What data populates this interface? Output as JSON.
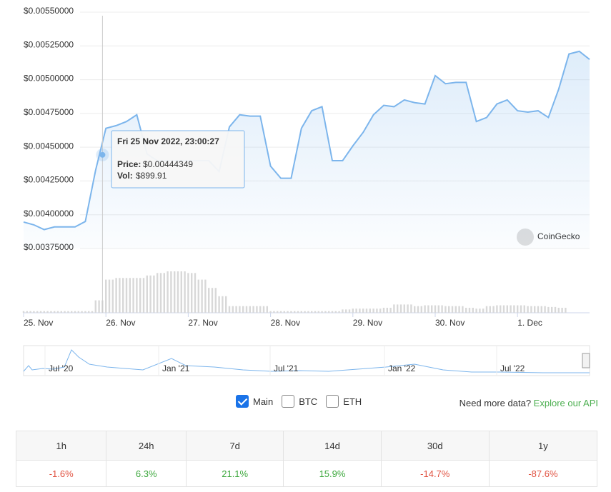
{
  "chart_data": {
    "type": "line",
    "series": [
      {
        "name": "Price",
        "color": "#7cb5ec",
        "x": [
          0,
          3,
          6,
          9,
          12,
          15,
          18,
          21,
          24,
          27,
          30,
          33,
          36,
          39,
          42,
          45,
          48,
          51,
          54,
          57,
          60,
          63,
          66,
          69,
          72,
          75,
          78,
          81,
          84,
          87,
          90,
          93,
          96,
          99,
          102,
          105,
          108,
          111,
          114,
          117,
          120,
          123,
          126,
          129,
          132,
          135,
          138,
          141,
          144,
          147,
          150,
          153,
          156,
          159,
          162,
          165
        ],
        "values": [
          0.003946,
          0.003925,
          0.00389,
          0.00391,
          0.00391,
          0.00391,
          0.00395,
          0.00433,
          0.00464,
          0.00466,
          0.00469,
          0.00474,
          0.00445,
          0.0044,
          0.0044,
          0.0044,
          0.0044,
          0.0044,
          0.0044,
          0.00432,
          0.00465,
          0.00474,
          0.00473,
          0.00473,
          0.00436,
          0.00427,
          0.00427,
          0.00464,
          0.00477,
          0.0048,
          0.0044,
          0.0044,
          0.00451,
          0.00461,
          0.00474,
          0.00481,
          0.0048,
          0.00485,
          0.00483,
          0.00482,
          0.00503,
          0.00497,
          0.00498,
          0.00498,
          0.00469,
          0.00472,
          0.00482,
          0.00485,
          0.00477,
          0.00476,
          0.00477,
          0.00472,
          0.00493,
          0.00519,
          0.00521,
          0.00515
        ]
      },
      {
        "name": "Vol",
        "color": "#d8d8d8",
        "axis": "y2",
        "x": [
          0,
          3,
          6,
          9,
          12,
          15,
          18,
          21,
          24,
          27,
          30,
          33,
          36,
          39,
          42,
          45,
          48,
          51,
          54,
          57,
          60,
          63,
          66,
          69,
          72,
          75,
          78,
          81,
          84,
          87,
          90,
          93,
          96,
          99,
          102,
          105,
          108,
          111,
          114,
          117,
          120,
          123,
          126,
          129,
          132,
          135,
          138,
          141,
          144,
          147,
          150,
          153,
          156
        ],
        "values": [
          2,
          2,
          2,
          2,
          2,
          2,
          2,
          15,
          40,
          42,
          42,
          42,
          45,
          48,
          50,
          50,
          48,
          40,
          30,
          20,
          8,
          8,
          8,
          8,
          2,
          2,
          2,
          2,
          2,
          2,
          2,
          4,
          5,
          5,
          5,
          6,
          10,
          10,
          8,
          9,
          9,
          8,
          8,
          6,
          5,
          8,
          9,
          9,
          9,
          8,
          8,
          7,
          6
        ]
      }
    ],
    "xlim": [
      0,
      165
    ],
    "xticks": [
      {
        "value": 0,
        "label": "25. Nov"
      },
      {
        "value": 24,
        "label": "26. Nov"
      },
      {
        "value": 48,
        "label": "27. Nov"
      },
      {
        "value": 72,
        "label": "28. Nov"
      },
      {
        "value": 96,
        "label": "29. Nov"
      },
      {
        "value": 120,
        "label": "30. Nov"
      },
      {
        "value": 144,
        "label": "1. Dec"
      }
    ],
    "ylim": [
      0.00375,
      0.0055
    ],
    "yticks": [
      {
        "value": 0.0055,
        "label": "$0.00550000"
      },
      {
        "value": 0.00525,
        "label": "$0.00525000"
      },
      {
        "value": 0.005,
        "label": "$0.00500000"
      },
      {
        "value": 0.00475,
        "label": "$0.00475000"
      },
      {
        "value": 0.0045,
        "label": "$0.00450000"
      },
      {
        "value": 0.00425,
        "label": "$0.00425000"
      },
      {
        "value": 0.004,
        "label": "$0.00400000"
      },
      {
        "value": 0.00375,
        "label": "$0.00375000"
      }
    ],
    "y2lim": [
      0,
      50
    ],
    "grid": true,
    "tooltip": {
      "title": "Fri 25 Nov 2022, 23:00:27",
      "x": 23,
      "price_label": "Price:",
      "price": "$0.00444349",
      "price_value": 0.00444349,
      "vol_label": "Vol:",
      "vol": "$899.91"
    },
    "watermark": "CoinGecko"
  },
  "navigator": {
    "labels": [
      "Jul '20",
      "Jan '21",
      "Jul '21",
      "Jan '22",
      "Jul '22"
    ]
  },
  "options": [
    {
      "label": "Main",
      "checked": true
    },
    {
      "label": "BTC",
      "checked": false
    },
    {
      "label": "ETH",
      "checked": false
    }
  ],
  "more_data": {
    "text": "Need more data?",
    "link": "Explore our API"
  },
  "table": {
    "headers": [
      "1h",
      "24h",
      "7d",
      "14d",
      "30d",
      "1y"
    ],
    "values": [
      "-1.6%",
      "6.3%",
      "21.1%",
      "15.9%",
      "-14.7%",
      "-87.6%"
    ]
  }
}
